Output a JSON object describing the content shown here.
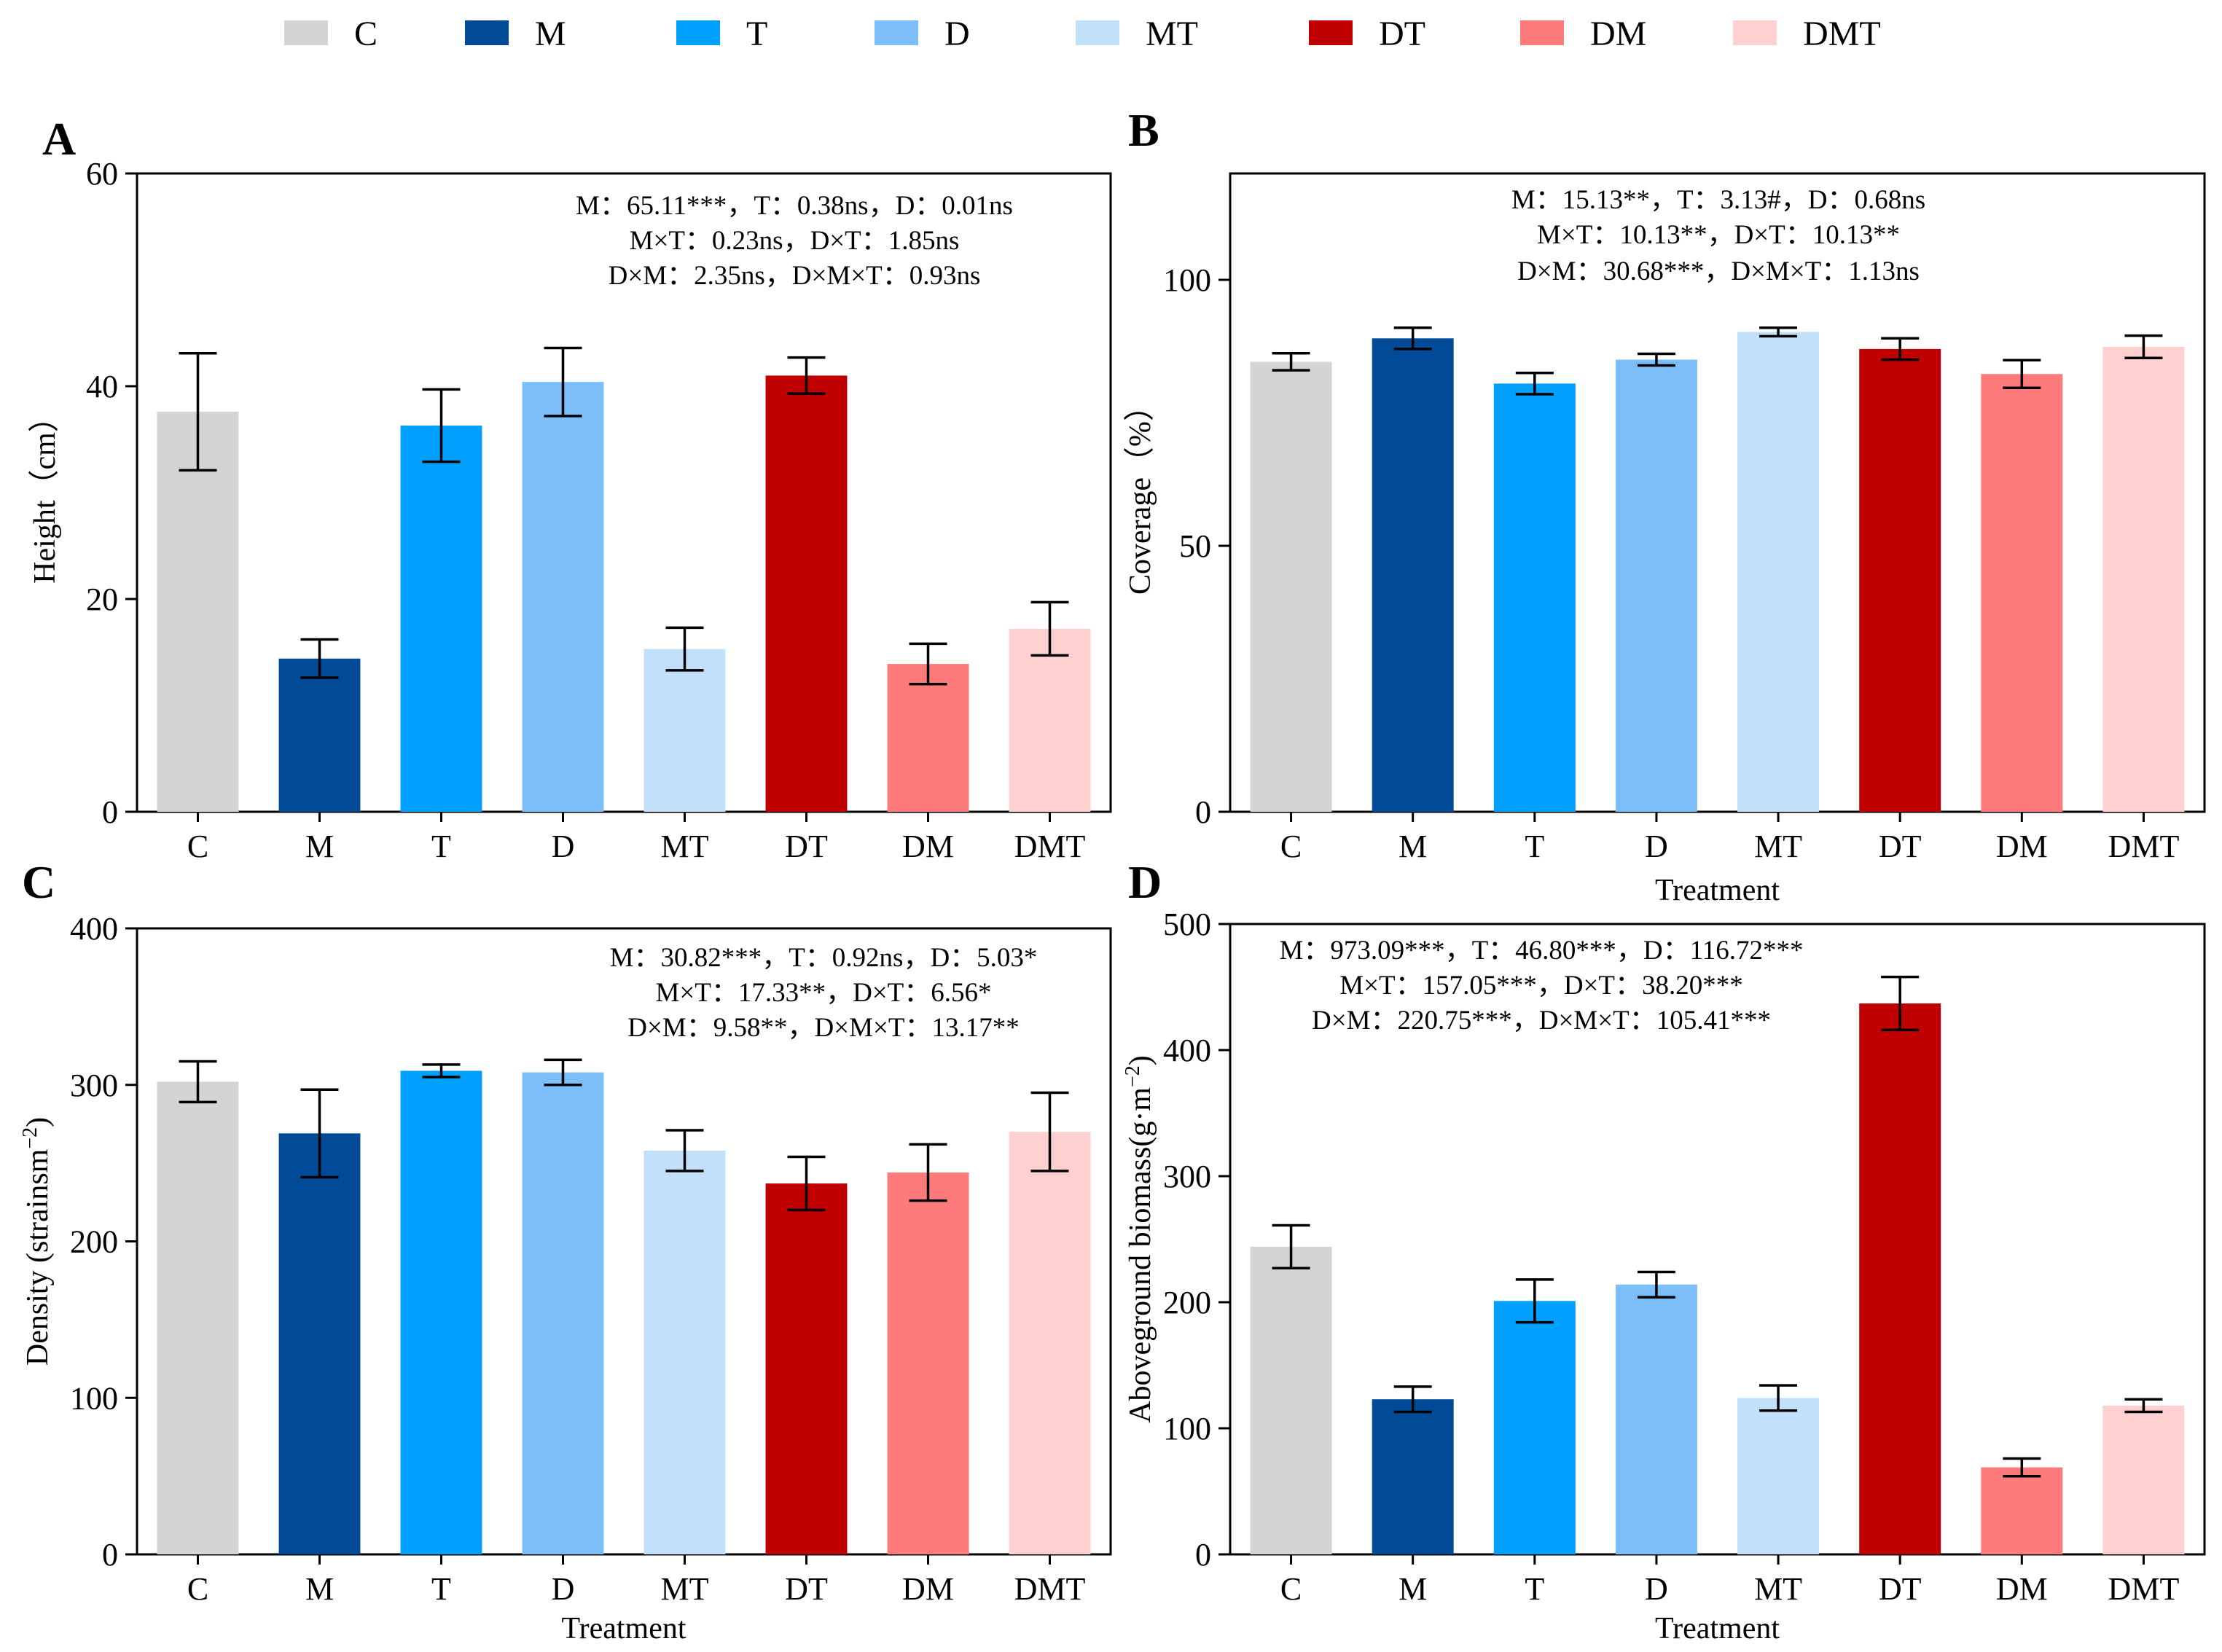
{
  "legend": [
    {
      "label": "C",
      "color": "#d4d4d4"
    },
    {
      "label": "M",
      "color": "#004a98"
    },
    {
      "label": "T",
      "color": "#00a0ff"
    },
    {
      "label": "D",
      "color": "#7bbefa"
    },
    {
      "label": "MT",
      "color": "#c3e0fb"
    },
    {
      "label": "DT",
      "color": "#c00000"
    },
    {
      "label": "DM",
      "color": "#ff7b7b"
    },
    {
      "label": "DMT",
      "color": "#ffd0d0"
    }
  ],
  "chart_data": [
    {
      "panel": "A",
      "type": "bar",
      "categories": [
        "C",
        "M",
        "T",
        "D",
        "MT",
        "DT",
        "DM",
        "DMT"
      ],
      "values": [
        37.6,
        14.4,
        36.3,
        40.4,
        15.3,
        41.0,
        13.9,
        17.2
      ],
      "errors": [
        5.5,
        1.8,
        3.4,
        3.2,
        2.0,
        1.7,
        1.9,
        2.5
      ],
      "ylim": [
        0,
        60
      ],
      "yticks": [
        0,
        20,
        40,
        60
      ],
      "ylabel": "Height（cm）",
      "xlabel": "",
      "stats": [
        "M：65.11***，T：0.38ns，D：0.01ns",
        "M×T：0.23ns，D×T：1.85ns",
        "D×M：2.35ns，D×M×T：0.93ns"
      ]
    },
    {
      "panel": "B",
      "type": "bar",
      "categories": [
        "C",
        "M",
        "T",
        "D",
        "MT",
        "DT",
        "DM",
        "DMT"
      ],
      "values": [
        84.6,
        89.0,
        80.5,
        85.0,
        90.2,
        87.0,
        82.3,
        87.4
      ],
      "errors": [
        1.6,
        2.0,
        2.0,
        1.1,
        0.8,
        2.0,
        2.6,
        2.1
      ],
      "ylim": [
        0,
        120
      ],
      "yticks": [
        0,
        50,
        100
      ],
      "ylabel": "Coverage（%）",
      "xlabel": "Treatment",
      "stats": [
        "M：15.13**，T：3.13#，D：0.68ns",
        "M×T：10.13**，D×T：10.13**",
        "D×M：30.68***，D×M×T：1.13ns"
      ]
    },
    {
      "panel": "C",
      "type": "bar",
      "categories": [
        "C",
        "M",
        "T",
        "D",
        "MT",
        "DT",
        "DM",
        "DMT"
      ],
      "values": [
        302,
        269,
        309,
        308,
        258,
        237,
        244,
        270
      ],
      "errors": [
        13,
        28,
        4,
        8,
        13,
        17,
        18,
        25
      ],
      "ylim": [
        0,
        400
      ],
      "yticks": [
        0,
        100,
        200,
        300,
        400
      ],
      "ylabel": "Density (strainsm−2)",
      "xlabel": "Treatment",
      "stats": [
        "M：30.82***，T：0.92ns，D：5.03*",
        "M×T：17.33**，D×T：6.56*",
        "D×M：9.58**，D×M×T：13.17**"
      ]
    },
    {
      "panel": "D",
      "type": "bar",
      "categories": [
        "C",
        "M",
        "T",
        "D",
        "MT",
        "DT",
        "DM",
        "DMT"
      ],
      "values": [
        244,
        123,
        201,
        214,
        124,
        437,
        69,
        118
      ],
      "errors": [
        17,
        10,
        17,
        10,
        10,
        21,
        7,
        5
      ],
      "ylim": [
        0,
        500
      ],
      "yticks": [
        0,
        100,
        200,
        300,
        400,
        500
      ],
      "ylabel": "Aboveground biomass(g·m−2)",
      "xlabel": "Treatment",
      "stats": [
        "M：973.09***，T：46.80***，D：116.72***",
        "M×T：157.05***，D×T：38.20***",
        "D×M：220.75***，D×M×T：105.41***"
      ]
    }
  ]
}
